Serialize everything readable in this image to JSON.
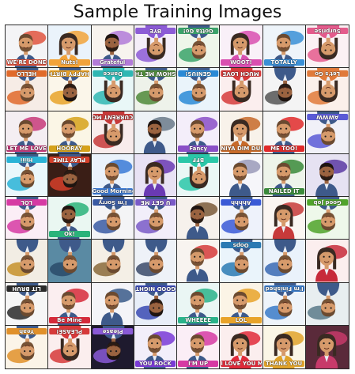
{
  "figure": {
    "title": "Sample Training Images"
  },
  "palette": {
    "skin": "#d69a6b",
    "skin_dark": "#9a6340",
    "hair_dark": "#3a2a22",
    "hair_brown": "#6b4a30",
    "suit": "#3e5a8a",
    "shirt": "#e9eef6"
  },
  "cells": [
    {
      "label": "WE'RE DONE",
      "bg": "#f4f4f6",
      "accent": "#e0533e",
      "avatar": "man",
      "flip": false
    },
    {
      "label": "Nuts!",
      "bg": "#eaf3fb",
      "accent": "#f2a33a",
      "avatar": "woman",
      "flip": false
    },
    {
      "label": "Grateful",
      "bg": "#f7f3ee",
      "accent": "#b27ad8",
      "avatar": "dark",
      "flip": false
    },
    {
      "label": "BYE",
      "bg": "#f4eef8",
      "accent": "#8c5bd6",
      "avatar": "woman",
      "flip": true
    },
    {
      "label": "Gotta Go!",
      "bg": "#eef6ea",
      "accent": "#3aa36a",
      "avatar": "man",
      "flip": true
    },
    {
      "label": "WOOT!",
      "bg": "#f9f0f8",
      "accent": "#d94fb0",
      "avatar": "woman",
      "flip": false
    },
    {
      "label": "TOTALLY",
      "bg": "#eef4fa",
      "accent": "#3a8fd6",
      "avatar": "man",
      "flip": false
    },
    {
      "label": "Surprise",
      "bg": "#fbf1f4",
      "accent": "#e45b8c",
      "avatar": "woman",
      "flip": true
    },
    {
      "label": "HELLO",
      "bg": "#f6ece6",
      "accent": "#e06a2a",
      "avatar": "man",
      "flip": true
    },
    {
      "label": "HAPPY BIRTHDAY",
      "bg": "#fbf6ea",
      "accent": "#e8a32a",
      "avatar": "dark",
      "flip": true
    },
    {
      "label": "Dance",
      "bg": "#e9f7f7",
      "accent": "#2fb7b3",
      "avatar": "woman",
      "flip": true
    },
    {
      "label": "SHOW ME THE MONEY",
      "bg": "#eef2ea",
      "accent": "#4f8a3a",
      "avatar": "man",
      "flip": true
    },
    {
      "label": "GENIUS!",
      "bg": "#eaf4fb",
      "accent": "#2a8ad6",
      "avatar": "man",
      "flip": true
    },
    {
      "label": "MUCH LOVE",
      "bg": "#fbeeee",
      "accent": "#d63a3a",
      "avatar": "woman",
      "flip": true
    },
    {
      "label": "",
      "bg": "#f4f4f4",
      "accent": "#555555",
      "avatar": "dark",
      "flip": true
    },
    {
      "label": "Let's Go",
      "bg": "#fbf0ea",
      "accent": "#e07a3a",
      "avatar": "woman",
      "flip": true
    },
    {
      "label": "LET ME LOVE YOU",
      "bg": "#f4eef2",
      "accent": "#c7397a",
      "avatar": "man",
      "flip": false
    },
    {
      "label": "HOORAY",
      "bg": "#fbf6e6",
      "accent": "#d6a21a",
      "avatar": "man",
      "flip": false
    },
    {
      "label": "CURRENT MOOD",
      "bg": "#f8ecec",
      "accent": "#c73a3a",
      "avatar": "woman",
      "flip": true
    },
    {
      "label": "",
      "bg": "#eef2f6",
      "accent": "#6a7a8a",
      "avatar": "dark",
      "flip": false
    },
    {
      "label": "Fancy",
      "bg": "#f4eefa",
      "accent": "#8a4fc7",
      "avatar": "man",
      "flip": false
    },
    {
      "label": "NIYA DIM DUN",
      "bg": "#f8f2ea",
      "accent": "#c76a2a",
      "avatar": "woman",
      "flip": false
    },
    {
      "label": "ME TOO!",
      "bg": "#f6f6f6",
      "accent": "#e02a2a",
      "avatar": "man",
      "flip": false
    },
    {
      "label": "AWWW",
      "bg": "#f1f1f8",
      "accent": "#5a5ad6",
      "avatar": "man",
      "flip": true
    },
    {
      "label": "Hiiii",
      "bg": "#eaf7fb",
      "accent": "#2ab3d6",
      "avatar": "man",
      "flip": true
    },
    {
      "label": "PLAY TIME",
      "bg": "#3a1e16",
      "accent": "#d6402a",
      "avatar": "dark",
      "flip": true
    },
    {
      "label": "Good Morning",
      "bg": "#eaf2fb",
      "accent": "#3a7ad6",
      "avatar": "man",
      "flip": false
    },
    {
      "label": "",
      "bg": "#e8e2f4",
      "accent": "#6a3ab3",
      "avatar": "woman",
      "flip": false
    },
    {
      "label": "BFF",
      "bg": "#eaf8f6",
      "accent": "#2ac7a8",
      "avatar": "woman",
      "flip": true
    },
    {
      "label": "",
      "bg": "#f6f6fa",
      "accent": "#9a9ab8",
      "avatar": "man",
      "flip": false
    },
    {
      "label": "NAILED IT",
      "bg": "#eef4ea",
      "accent": "#3a8a3a",
      "avatar": "man",
      "flip": false
    },
    {
      "label": "",
      "bg": "#e6e2f2",
      "accent": "#5a3aa3",
      "avatar": "dark",
      "flip": false
    },
    {
      "label": "LOL",
      "bg": "#fbeef6",
      "accent": "#d63aa3",
      "avatar": "man",
      "flip": true
    },
    {
      "label": "Ok!",
      "bg": "#eaf7f2",
      "accent": "#2ab37a",
      "avatar": "dark",
      "flip": false
    },
    {
      "label": "I'm Sorry",
      "bg": "#f4f4f6",
      "accent": "#3a5aa3",
      "avatar": "man",
      "flip": true
    },
    {
      "label": "U GET ME",
      "bg": "#f2eefa",
      "accent": "#7a5ac7",
      "avatar": "man",
      "flip": true
    },
    {
      "label": "",
      "bg": "#f6f1ec",
      "accent": "#7a5a3a",
      "avatar": "dark",
      "flip": false
    },
    {
      "label": "Ahhhh",
      "bg": "#eef2fb",
      "accent": "#3a5ad6",
      "avatar": "man",
      "flip": true
    },
    {
      "label": "",
      "bg": "#fbf6f2",
      "accent": "#c73a3a",
      "avatar": "woman",
      "flip": false
    },
    {
      "label": "Good Job",
      "bg": "#eef8ea",
      "accent": "#4fa32a",
      "avatar": "man",
      "flip": true
    },
    {
      "label": "",
      "bg": "#f2ede4",
      "accent": "#c7902a",
      "avatar": "man",
      "flip": true
    },
    {
      "label": "",
      "bg": "#5a8aa3",
      "accent": "#2a4a6a",
      "avatar": "man",
      "flip": true
    },
    {
      "label": "",
      "bg": "#f4efe6",
      "accent": "#8a6a3a",
      "avatar": "man",
      "flip": true
    },
    {
      "label": "",
      "bg": "#eef2f8",
      "accent": "#3a4a6a",
      "avatar": "man",
      "flip": true
    },
    {
      "label": "",
      "bg": "#f8f4f0",
      "accent": "#d63a3a",
      "avatar": "man",
      "flip": false
    },
    {
      "label": "Oops",
      "bg": "#eaf4fb",
      "accent": "#2a7ab3",
      "avatar": "man",
      "flip": true
    },
    {
      "label": "",
      "bg": "#eaf2fb",
      "accent": "#3a6ab3",
      "avatar": "man",
      "flip": true
    },
    {
      "label": "",
      "bg": "#fbeeee",
      "accent": "#c72a3a",
      "avatar": "woman",
      "flip": false
    },
    {
      "label": "LIT BRUH",
      "bg": "#f6f6f6",
      "accent": "#2a2a2a",
      "avatar": "man",
      "flip": true
    },
    {
      "label": "Be Mine",
      "bg": "#fbeef0",
      "accent": "#d62a3a",
      "avatar": "man",
      "flip": false
    },
    {
      "label": "",
      "bg": "#f4f4f8",
      "accent": "#3a5a8a",
      "avatar": "man",
      "flip": false
    },
    {
      "label": "GOOD NIGHT",
      "bg": "#e8eef8",
      "accent": "#3a4ab3",
      "avatar": "dark",
      "flip": true
    },
    {
      "label": "WHEEEE",
      "bg": "#eaf6f4",
      "accent": "#2ab38a",
      "avatar": "man",
      "flip": false
    },
    {
      "label": "LOL",
      "bg": "#fbf4e6",
      "accent": "#e8a32a",
      "avatar": "man",
      "flip": false
    },
    {
      "label": "I'm Finished",
      "bg": "#eef4fa",
      "accent": "#3a7ac7",
      "avatar": "man",
      "flip": true
    },
    {
      "label": "",
      "bg": "#e8eef0",
      "accent": "#5a7a8a",
      "avatar": "man",
      "flip": true
    },
    {
      "label": "Yeah",
      "bg": "#fbf4e8",
      "accent": "#e0902a",
      "avatar": "man",
      "flip": true
    },
    {
      "label": "PLEASE!",
      "bg": "#fbeeee",
      "accent": "#d63a3a",
      "avatar": "woman",
      "flip": true
    },
    {
      "label": "Please",
      "bg": "#1e1a2e",
      "accent": "#8a5ad6",
      "avatar": "dark",
      "flip": true
    },
    {
      "label": "YOU ROCK",
      "bg": "#f2eefa",
      "accent": "#7a3ad6",
      "avatar": "man",
      "flip": false
    },
    {
      "label": "I'M UP",
      "bg": "#fbeef6",
      "accent": "#d63aa3",
      "avatar": "man",
      "flip": false
    },
    {
      "label": "I LOVE YOU MORE",
      "bg": "#fbeeee",
      "accent": "#e02a3a",
      "avatar": "woman",
      "flip": false
    },
    {
      "label": "THANK YOU",
      "bg": "#fbf6e6",
      "accent": "#e0a32a",
      "avatar": "woman",
      "flip": false
    },
    {
      "label": "",
      "bg": "#5a2a3a",
      "accent": "#c73a6a",
      "avatar": "woman",
      "flip": false
    }
  ]
}
